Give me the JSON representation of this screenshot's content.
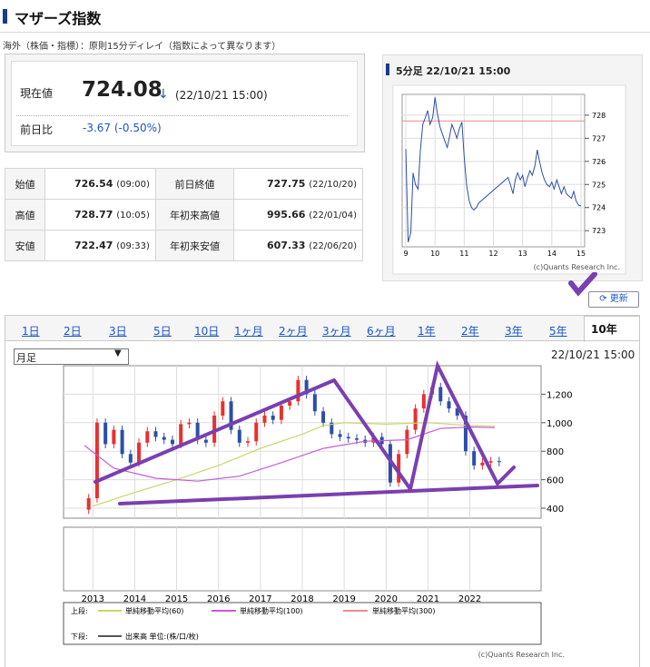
{
  "header": {
    "title": "マザーズ指数",
    "notice": "海外（株価・指標）：原則15分ディレイ（指数によって異なります）"
  },
  "quote": {
    "price_label": "現在値",
    "price": "724.08",
    "arrow": "↓",
    "time": "(22/10/21 15:00)",
    "change_label": "前日比",
    "change": "-3.67 (-0.50%)"
  },
  "stats": [
    {
      "l1": "始値",
      "v1": "726.54",
      "t1": "(09:00)",
      "l2": "前日終値",
      "v2": "727.75",
      "t2": "(22/10/20)"
    },
    {
      "l1": "高値",
      "v1": "728.77",
      "t1": "(10:05)",
      "l2": "年初来高値",
      "v2": "995.66",
      "t2": "(22/01/04)"
    },
    {
      "l1": "安値",
      "v1": "722.47",
      "t1": "(09:33)",
      "l2": "年初来安値",
      "v2": "607.33",
      "t2": "(22/06/20)"
    }
  ],
  "mini": {
    "title": "5分足 22/10/21 15:00",
    "copyright": "(c)Quants Research Inc.",
    "refresh": "更新"
  },
  "tabs": [
    "1日",
    "2日",
    "3日",
    "5日",
    "10日",
    "1ヶ月",
    "2ヶ月",
    "3ヶ月",
    "6ヶ月",
    "1年",
    "2年",
    "3年",
    "5年",
    "10年"
  ],
  "main": {
    "select": "月足",
    "time": "22/10/21 15:00",
    "copyright": "(c)Quants Research Inc.",
    "legend_top_label": "上段:",
    "legend_bottom_label": "下段:",
    "ma60": "単純移動平均(60)",
    "ma100": "単純移動平均(100)",
    "ma300": "単純移動平均(300)",
    "volume": "出来高 単位:(株/口/枚)"
  },
  "colors": {
    "accent": "#1a3b8c",
    "link": "#1a55c8",
    "up": "#e83030",
    "down": "#2b4fa8",
    "ma60": "#c9d66a",
    "ma100": "#c45dd6",
    "ma300": "#f08a8a",
    "annotation": "#7a3fb0"
  },
  "chart_data": [
    {
      "type": "line",
      "title": "5分足 22/10/21 15:00",
      "x_ticks": [
        "9",
        "10",
        "11",
        "12",
        "13",
        "14",
        "15"
      ],
      "y_ticks": [
        723,
        724,
        725,
        726,
        727,
        728
      ],
      "ylim": [
        722.3,
        728.9
      ],
      "ref_line": 727.75,
      "series": [
        {
          "x": [
            9.0,
            9.08,
            9.17,
            9.25,
            9.33,
            9.42,
            9.5,
            9.58,
            9.67,
            9.75,
            9.83,
            9.92,
            10.0,
            10.08,
            10.17,
            10.25,
            10.33,
            10.42,
            10.5,
            10.58,
            10.67,
            10.75,
            10.83,
            10.92,
            11.0,
            11.08,
            11.17,
            11.25,
            11.33,
            11.42,
            11.5,
            12.5,
            12.58,
            12.67,
            12.75,
            12.83,
            12.92,
            13.0,
            13.08,
            13.17,
            13.25,
            13.33,
            13.42,
            13.5,
            13.58,
            13.67,
            13.75,
            13.83,
            13.92,
            14.0,
            14.08,
            14.17,
            14.25,
            14.33,
            14.42,
            14.5,
            14.58,
            14.67,
            14.75,
            14.83,
            14.92,
            15.0
          ],
          "y": [
            726.54,
            722.5,
            722.9,
            725.5,
            725.0,
            724.8,
            726.5,
            727.6,
            727.9,
            728.2,
            727.6,
            727.9,
            728.77,
            728.1,
            727.5,
            727.2,
            726.9,
            726.6,
            727.1,
            727.6,
            727.3,
            727.0,
            727.4,
            727.7,
            726.2,
            725.0,
            724.3,
            724.0,
            723.9,
            724.0,
            724.2,
            725.3,
            725.0,
            724.6,
            725.2,
            725.5,
            725.2,
            725.4,
            724.9,
            725.3,
            725.6,
            725.4,
            725.8,
            726.5,
            726.0,
            725.5,
            725.2,
            725.0,
            724.9,
            725.1,
            724.8,
            725.2,
            724.9,
            724.6,
            724.9,
            724.6,
            724.5,
            724.4,
            724.7,
            724.3,
            724.1,
            724.08
          ]
        }
      ]
    },
    {
      "type": "candlestick",
      "title": "10年 月足",
      "x_ticks": [
        "2013",
        "2014",
        "2015",
        "2016",
        "2017",
        "2018",
        "2019",
        "2020",
        "2021",
        "2022"
      ],
      "y_ticks": [
        400,
        600,
        800,
        1000,
        1200
      ],
      "ylim": [
        330,
        1400
      ],
      "series": [
        {
          "name": "price",
          "x": [
            2012.8,
            2013.0,
            2013.2,
            2013.4,
            2013.6,
            2013.8,
            2014.0,
            2014.2,
            2014.4,
            2014.6,
            2014.8,
            2015.0,
            2015.2,
            2015.4,
            2015.6,
            2015.8,
            2016.0,
            2016.2,
            2016.4,
            2016.6,
            2016.8,
            2017.0,
            2017.2,
            2017.4,
            2017.6,
            2017.8,
            2018.0,
            2018.2,
            2018.4,
            2018.6,
            2018.8,
            2019.0,
            2019.2,
            2019.4,
            2019.6,
            2019.8,
            2020.0,
            2020.2,
            2020.4,
            2020.6,
            2020.8,
            2021.0,
            2021.2,
            2021.4,
            2021.6,
            2021.8,
            2022.0,
            2022.2,
            2022.4,
            2022.6,
            2022.8
          ],
          "y": [
            390,
            470,
            1000,
            850,
            950,
            780,
            720,
            860,
            940,
            900,
            880,
            850,
            990,
            1000,
            880,
            860,
            1050,
            1150,
            950,
            860,
            870,
            1000,
            1050,
            1020,
            1120,
            1150,
            1300,
            1200,
            1080,
            1000,
            920,
            900,
            890,
            880,
            860,
            900,
            850,
            580,
            780,
            950,
            1100,
            1200,
            1250,
            1150,
            1100,
            1050,
            800,
            700,
            720,
            730,
            724
          ]
        },
        {
          "name": "単純移動平均(60)",
          "x": [
            2013.0,
            2014.0,
            2015.0,
            2016.0,
            2017.0,
            2018.0,
            2018.5,
            2019.0,
            2020.0,
            2021.0,
            2022.0,
            2022.6
          ],
          "y": [
            415,
            510,
            600,
            700,
            820,
            920,
            980,
            1000,
            990,
            1000,
            980,
            975
          ]
        },
        {
          "name": "単純移動平均(100)",
          "x": [
            2012.8,
            2013.5,
            2014.5,
            2015.5,
            2016.5,
            2017.5,
            2018.5,
            2019.5,
            2020.5,
            2021.3,
            2022.0,
            2022.6
          ],
          "y": [
            840,
            680,
            610,
            590,
            625,
            720,
            820,
            870,
            880,
            960,
            970,
            965
          ]
        }
      ]
    }
  ]
}
